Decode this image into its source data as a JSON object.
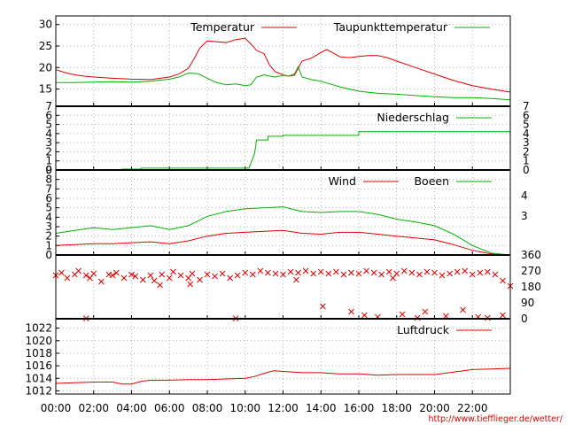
{
  "chart_data": [
    {
      "type": "line",
      "name": "temperature_panel",
      "ylim": [
        11,
        32
      ],
      "yticks": [
        15,
        20,
        25,
        30
      ],
      "grid": true,
      "legend_placement": "top-right",
      "series": [
        {
          "name": "Temperatur",
          "color": "#e00000",
          "x": [
            0,
            0.5,
            1,
            1.5,
            2,
            3,
            4,
            5,
            6,
            6.5,
            7,
            7.3,
            7.6,
            8,
            8.5,
            9,
            9.5,
            10,
            10.3,
            10.6,
            11,
            11.3,
            11.6,
            12,
            12.3,
            12.6,
            13,
            13.5,
            14,
            14.3,
            14.6,
            15,
            15.5,
            16,
            16.5,
            17,
            17.5,
            18,
            19,
            20,
            21,
            22,
            23,
            24
          ],
          "y": [
            19.5,
            18.8,
            18.3,
            18,
            17.8,
            17.5,
            17.3,
            17.2,
            17.8,
            18.5,
            19.8,
            22,
            24.5,
            26.2,
            26,
            25.8,
            26.5,
            26.8,
            25.5,
            24,
            23.2,
            20.5,
            19,
            18.3,
            18,
            18.2,
            21.5,
            22.2,
            23.5,
            24.2,
            23.5,
            22.5,
            22.3,
            22.6,
            22.8,
            22.8,
            22.3,
            21.5,
            20,
            18.5,
            17,
            15.8,
            15,
            14.3
          ]
        },
        {
          "name": "Taupunkttemperatur",
          "color": "#00b000",
          "x": [
            0,
            1,
            2,
            3,
            4,
            5,
            6,
            6.5,
            7,
            7.5,
            8,
            8.5,
            9,
            9.5,
            10,
            10.3,
            10.6,
            11,
            11.3,
            11.6,
            12,
            12.3,
            12.6,
            12.8,
            13,
            13.5,
            14,
            15,
            16,
            17,
            18,
            19,
            20,
            21,
            22,
            23,
            24
          ],
          "y": [
            16.5,
            16.5,
            16.6,
            16.7,
            16.6,
            16.8,
            17.3,
            17.8,
            18.7,
            18.6,
            17.5,
            16.5,
            16,
            16.2,
            15.8,
            16,
            17.8,
            18.3,
            18,
            17.8,
            18.2,
            18,
            18.5,
            20.2,
            17.8,
            17.2,
            16.8,
            15.5,
            14.5,
            14,
            13.8,
            13.5,
            13.2,
            13,
            13,
            12.8,
            12.5
          ]
        }
      ]
    },
    {
      "type": "line",
      "name": "precipitation_panel",
      "ylim": [
        0,
        7
      ],
      "yticks": [
        0,
        1,
        2,
        3,
        4,
        5,
        6,
        7
      ],
      "grid": true,
      "legend_placement": "top-right",
      "series": [
        {
          "name": "Niederschlag",
          "color": "#00b000",
          "x": [
            0,
            3.5,
            3.5,
            4.5,
            4.5,
            10.2,
            10.5,
            10.6,
            11.2,
            11.2,
            12,
            12,
            16,
            16,
            24
          ],
          "y": [
            0,
            0,
            0.1,
            0.1,
            0.2,
            0.2,
            1.8,
            3.3,
            3.3,
            3.7,
            3.7,
            3.8,
            3.8,
            4.2,
            4.2
          ]
        }
      ]
    },
    {
      "type": "line",
      "name": "wind_panel",
      "ylim": [
        0,
        9
      ],
      "yticks": [
        0,
        1,
        2,
        3,
        4,
        5,
        6,
        7,
        8,
        9
      ],
      "right_ticks": [
        "3",
        "4"
      ],
      "grid": true,
      "legend_placement": "top-right",
      "series": [
        {
          "name": "Wind",
          "color": "#e00000",
          "x": [
            0,
            1,
            2,
            3,
            4,
            5,
            6,
            7,
            8,
            9,
            10,
            11,
            12,
            13,
            14,
            15,
            16,
            17,
            18,
            19,
            20,
            21,
            22,
            23,
            24
          ],
          "y": [
            1,
            1.1,
            1.2,
            1.2,
            1.3,
            1.4,
            1.2,
            1.5,
            2,
            2.3,
            2.4,
            2.5,
            2.6,
            2.3,
            2.2,
            2.4,
            2.4,
            2.2,
            2,
            1.8,
            1.6,
            1.1,
            0.5,
            0.1,
            0
          ]
        },
        {
          "name": "Boeen",
          "color": "#00b000",
          "x": [
            0,
            1,
            2,
            3,
            4,
            5,
            6,
            7,
            8,
            9,
            10,
            11,
            12,
            13,
            14,
            15,
            16,
            17,
            18,
            19,
            20,
            21,
            22,
            23,
            24
          ],
          "y": [
            2.3,
            2.6,
            2.9,
            2.7,
            2.9,
            3.1,
            2.7,
            3.1,
            4.1,
            4.6,
            4.9,
            5,
            5.1,
            4.6,
            4.5,
            4.6,
            4.6,
            4.3,
            3.8,
            3.5,
            3.1,
            2.2,
            1,
            0.2,
            0
          ]
        }
      ]
    },
    {
      "type": "scatter",
      "name": "wind_direction_panel",
      "ylim": [
        0,
        360
      ],
      "right_ticks": [
        "360",
        "270",
        "180",
        "90",
        "0"
      ],
      "grid": true,
      "series": [
        {
          "name": "",
          "color": "#e00000",
          "x": [
            0,
            0.3,
            0.6,
            1,
            1.2,
            1.6,
            1.8,
            2,
            2.4,
            2.8,
            3,
            3.2,
            3.6,
            4,
            4.2,
            4.6,
            5,
            5.2,
            5.6,
            6,
            6.2,
            6.6,
            7,
            7.2,
            7.6,
            8,
            8.4,
            8.8,
            9.2,
            9.6,
            10,
            10.4,
            10.8,
            11.2,
            11.6,
            12,
            12.4,
            12.8,
            13.2,
            13.6,
            14,
            14.4,
            14.8,
            15.2,
            15.6,
            16,
            16.4,
            16.8,
            17.2,
            17.6,
            18,
            18.4,
            18.8,
            19.2,
            19.6,
            20,
            20.4,
            20.8,
            21.2,
            21.6,
            22,
            22.4,
            22.8,
            23.2,
            23.6,
            24,
            1.6,
            9.5,
            14.1,
            15.6,
            16.3,
            17,
            18.3,
            19.1,
            19.5,
            20.6,
            21.5,
            22.3,
            22.8,
            23.6,
            12.7,
            5.5,
            7.1,
            17.8
          ],
          "y": [
            245,
            260,
            230,
            250,
            270,
            245,
            230,
            255,
            210,
            250,
            245,
            260,
            230,
            250,
            240,
            220,
            245,
            215,
            250,
            230,
            265,
            245,
            230,
            255,
            220,
            250,
            240,
            255,
            230,
            245,
            260,
            250,
            270,
            260,
            255,
            250,
            265,
            260,
            270,
            255,
            265,
            255,
            265,
            250,
            260,
            255,
            270,
            260,
            250,
            265,
            255,
            270,
            260,
            250,
            265,
            260,
            245,
            255,
            265,
            270,
            250,
            260,
            265,
            250,
            215,
            185,
            2,
            2,
            70,
            40,
            20,
            10,
            25,
            5,
            40,
            15,
            50,
            10,
            5,
            20,
            220,
            190,
            195,
            230
          ]
        }
      ]
    },
    {
      "type": "line",
      "name": "pressure_panel",
      "ylim": [
        1011.5,
        1023.5
      ],
      "yticks": [
        1012,
        1014,
        1016,
        1018,
        1020,
        1022
      ],
      "xticks": [
        "00:00",
        "02:00",
        "04:00",
        "06:00",
        "08:00",
        "10:00",
        "12:00",
        "14:00",
        "16:00",
        "18:00",
        "20:00",
        "22:00"
      ],
      "grid": true,
      "legend_placement": "top-right",
      "series": [
        {
          "name": "Luftdruck",
          "color": "#e00000",
          "x": [
            0,
            1,
            2,
            3,
            3.5,
            4,
            4.5,
            5,
            6,
            7,
            8,
            9,
            10,
            10.5,
            11,
            11.5,
            12,
            13,
            14,
            15,
            16,
            17,
            18,
            19,
            20,
            21,
            22,
            23,
            24
          ],
          "y": [
            1013.2,
            1013.3,
            1013.4,
            1013.4,
            1013.1,
            1013.1,
            1013.5,
            1013.7,
            1013.7,
            1013.8,
            1013.8,
            1013.9,
            1014,
            1014.3,
            1014.8,
            1015.2,
            1015.1,
            1014.9,
            1014.9,
            1014.7,
            1014.7,
            1014.5,
            1014.6,
            1014.6,
            1014.6,
            1015,
            1015.4,
            1015.5,
            1015.6
          ]
        }
      ]
    }
  ],
  "footer_url": "http://www.tiefflieger.de/wetter/"
}
